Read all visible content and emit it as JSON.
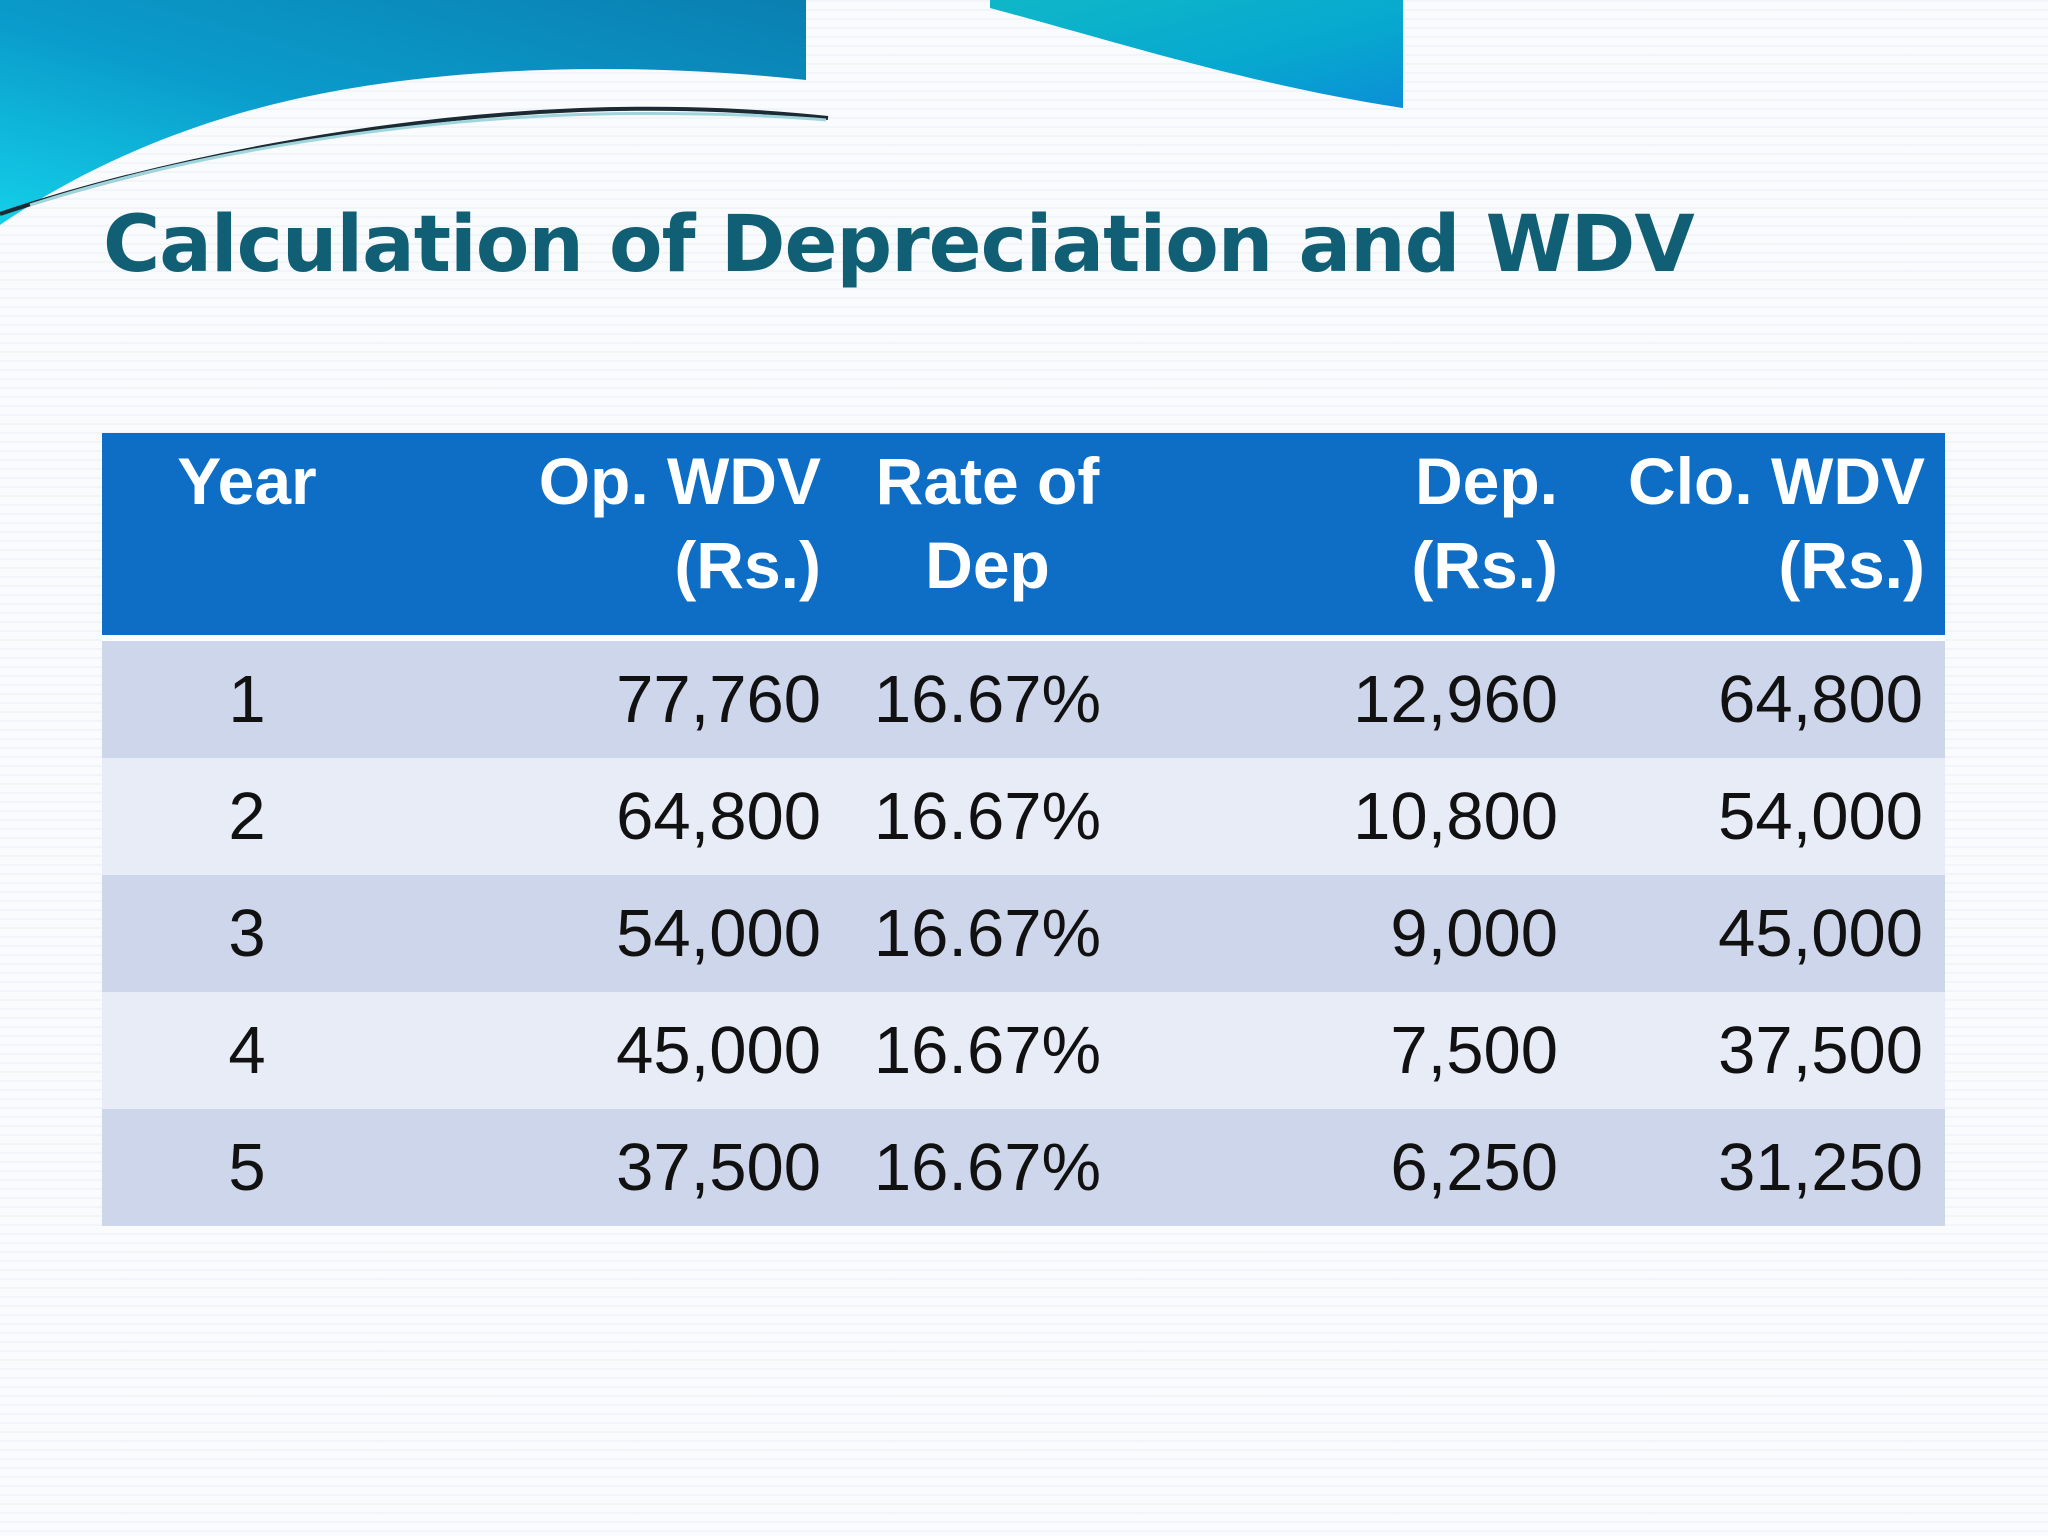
{
  "slide": {
    "title": "Calculation of Depreciation and WDV"
  },
  "table": {
    "headers": {
      "year": "Year",
      "op_wdv_line1": "Op. WDV",
      "op_wdv_line2": "(Rs.)",
      "rate_line1": "Rate of",
      "rate_line2": "Dep",
      "dep_line1": "Dep.",
      "dep_line2": "(Rs.)",
      "clo_wdv_line1": "Clo. WDV",
      "clo_wdv_line2": "(Rs.)"
    },
    "rows": [
      {
        "year": "1",
        "op_wdv": "77,760",
        "rate": "16.67%",
        "dep": "12,960",
        "clo_wdv": "64,800"
      },
      {
        "year": "2",
        "op_wdv": "64,800",
        "rate": "16.67%",
        "dep": "10,800",
        "clo_wdv": "54,000"
      },
      {
        "year": "3",
        "op_wdv": "54,000",
        "rate": "16.67%",
        "dep": "9,000",
        "clo_wdv": "45,000"
      },
      {
        "year": "4",
        "op_wdv": "45,000",
        "rate": "16.67%",
        "dep": "7,500",
        "clo_wdv": "37,500"
      },
      {
        "year": "5",
        "op_wdv": "37,500",
        "rate": "16.67%",
        "dep": "6,250",
        "clo_wdv": "31,250"
      }
    ]
  },
  "colors": {
    "title": "#115f75",
    "header_bg": "#0e6ec6",
    "row_odd": "#cdd6ea",
    "row_even": "#e8ecf6",
    "wave_dark": "#0a86b8",
    "wave_light": "#11c4e0"
  }
}
